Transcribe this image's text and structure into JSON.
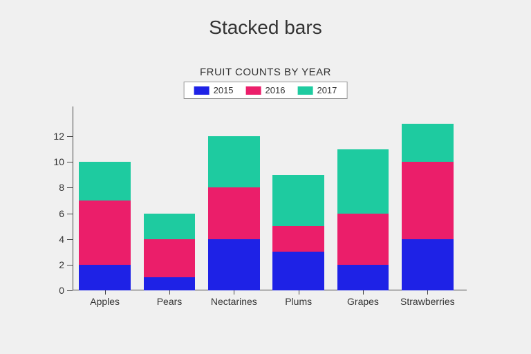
{
  "title": "Stacked bars",
  "subtitle": "FRUIT COUNTS BY YEAR",
  "title_fontsize": 28,
  "subtitle_fontsize": 15,
  "background_color": "#f0f0f0",
  "chart": {
    "type": "bar-stacked",
    "categories": [
      "Apples",
      "Pears",
      "Nectarines",
      "Plums",
      "Grapes",
      "Strawberries"
    ],
    "series": [
      {
        "name": "2015",
        "color": "#1e22e6",
        "values": [
          2,
          1,
          4,
          3,
          2,
          4
        ]
      },
      {
        "name": "2016",
        "color": "#eb1e6a",
        "values": [
          5,
          3,
          4,
          2,
          4,
          6
        ]
      },
      {
        "name": "2017",
        "color": "#1ecba0",
        "values": [
          3,
          2,
          4,
          4,
          5,
          3
        ]
      }
    ],
    "ylim": [
      0,
      14
    ],
    "ytick_step": 2,
    "bar_width": 0.8,
    "axis_color": "#444444",
    "label_fontsize": 14,
    "legend": {
      "background": "#ffffff",
      "border": "#999999",
      "fontsize": 13
    }
  }
}
